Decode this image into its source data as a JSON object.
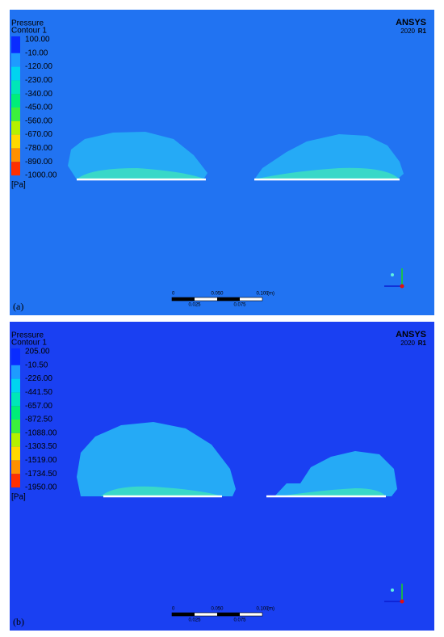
{
  "panels": [
    {
      "label": "(a)",
      "legend": {
        "title": "Pressure",
        "subtitle": "Contour 1",
        "unit": "[Pa]",
        "values": [
          "100.00",
          "-10.00",
          "-120.00",
          "-230.00",
          "-340.00",
          "-450.00",
          "-560.00",
          "-670.00",
          "-780.00",
          "-890.00",
          "-1000.00"
        ]
      },
      "brand": {
        "name": "ANSYS",
        "version": "2020",
        "release": "R1"
      },
      "scale": {
        "top": [
          "0",
          "0.050",
          "0.100"
        ],
        "unit": "(m)",
        "bottom": [
          "0.025",
          "0.075"
        ]
      }
    },
    {
      "label": "(b)",
      "legend": {
        "title": "Pressure",
        "subtitle": "Contour 1",
        "unit": "[Pa]",
        "values": [
          "205.00",
          "-10.50",
          "-226.00",
          "-441.50",
          "-657.00",
          "-872.50",
          "-1088.00",
          "-1303.50",
          "-1519.00",
          "-1734.50",
          "-1950.00"
        ]
      },
      "brand": {
        "name": "ANSYS",
        "version": "2020",
        "release": "R1"
      },
      "scale": {
        "top": [
          "0",
          "0.050",
          "0.100"
        ],
        "unit": "(m)",
        "bottom": [
          "0.025",
          "0.075"
        ]
      }
    }
  ]
}
